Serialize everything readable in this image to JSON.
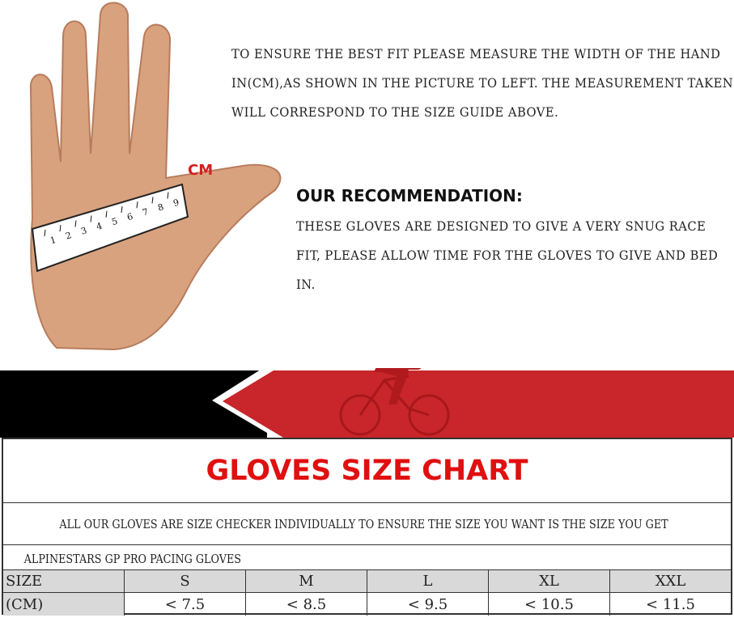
{
  "intro_text": "TO ENSURE THE BEST FIT PLEASE MEASURE THE WIDTH OF THE HAND IN(CM),AS SHOWN IN THE PICTURE TO LEFT. THE MEASUREMENT TAKEN WILL CORRESPOND TO THE SIZE GUIDE ABOVE.",
  "ruler_unit": "CM",
  "ruler_ticks": [
    "1",
    "2",
    "3",
    "4",
    "5",
    "6",
    "7",
    "8",
    "9"
  ],
  "recommendation": {
    "title": "OUR RECOMMENDATION:",
    "text": "THESE GLOVES ARE DESIGNED TO GIVE A VERY SNUG RACE FIT, PLEASE ALLOW TIME FOR THE GLOVES TO GIVE AND BED IN."
  },
  "colors": {
    "banner_red": "#c8262a",
    "banner_black": "#000000",
    "title_red": "#e01010"
  },
  "banner_icon": "cyclist-icon",
  "chart": {
    "title": "GLOVES SIZE CHART",
    "note": "ALL  OUR GLOVES ARE SIZE CHECKER INDIVIDUALLY TO ENSURE THE SIZE YOU WANT IS THE SIZE YOU GET",
    "product": "ALPINESTARS GP PRO PACING GLOVES",
    "size_label": "SIZE",
    "unit_label": "(CM)",
    "sizes": [
      "S",
      "M",
      "L",
      "XL",
      "XXL"
    ],
    "measurements": [
      "< 7.5",
      "< 8.5",
      "< 9.5",
      "< 10.5",
      "< 11.5"
    ]
  }
}
